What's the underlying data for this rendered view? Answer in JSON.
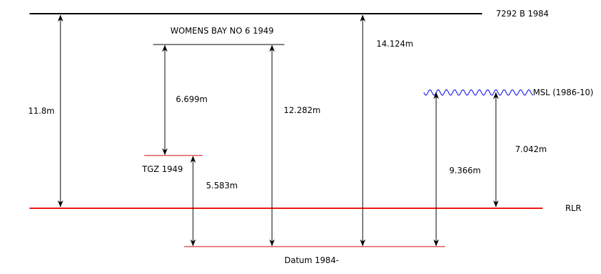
{
  "labels": {
    "benchmark_top": "7292 B 1984",
    "womens_bay": "WOMENS BAY NO 6 1949",
    "tgz": "TGZ 1949",
    "msl": "MSL (1986-10)",
    "rlr": "RLR",
    "datum": "Datum 1984-"
  },
  "measurements": {
    "benchmark_to_rlr": "11.8m",
    "womens_bay_to_tgz": "6.699m",
    "tgz_to_datum": "5.583m",
    "womens_bay_to_datum": "12.282m",
    "benchmark_to_datum": "14.124m",
    "msl_to_datum": "9.366m",
    "msl_to_rlr": "7.042m"
  },
  "colors": {
    "rlr_line": "#ee1111",
    "tgz_line": "#cc0000",
    "msl_wave": "#0000ee",
    "ink": "#000000"
  }
}
